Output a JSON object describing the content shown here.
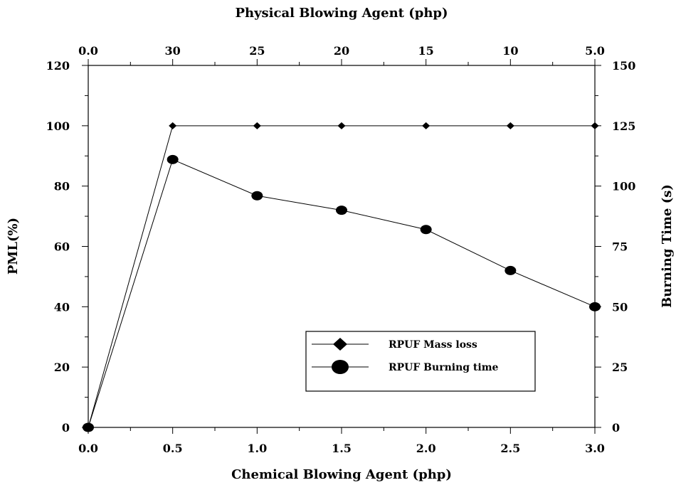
{
  "chart_data": {
    "type": "line",
    "xlabel": "Chemical Blowing Agent (php)",
    "x2label": "Physical Blowing Agent (php)",
    "ylabel": "PML(%)",
    "y2label": "Burning Time (s)",
    "x": [
      0.0,
      0.5,
      1.0,
      1.5,
      2.0,
      2.5,
      3.0
    ],
    "xlim": [
      0.0,
      3.0
    ],
    "ylim": [
      0,
      120
    ],
    "y2lim": [
      0,
      150
    ],
    "x_tick_labels": [
      "0.0",
      "0.5",
      "1.0",
      "1.5",
      "2.0",
      "2.5",
      "3.0"
    ],
    "x2_tick_labels": [
      "0.0",
      "30",
      "25",
      "20",
      "15",
      "10",
      "5.0"
    ],
    "y_tick_labels": [
      "0",
      "20",
      "40",
      "60",
      "80",
      "100",
      "120"
    ],
    "y2_tick_labels": [
      "0",
      "25",
      "50",
      "75",
      "100",
      "125",
      "150"
    ],
    "series": [
      {
        "name": "RPUF Mass loss",
        "axis": "left",
        "marker": "diamond",
        "values": [
          0,
          100,
          100,
          100,
          100,
          100,
          100
        ]
      },
      {
        "name": "RPUF Burning time",
        "axis": "right",
        "marker": "circle",
        "values": [
          0,
          111,
          96,
          90,
          82,
          65,
          50
        ]
      }
    ],
    "grid": false,
    "legend_position": "lower-right"
  }
}
